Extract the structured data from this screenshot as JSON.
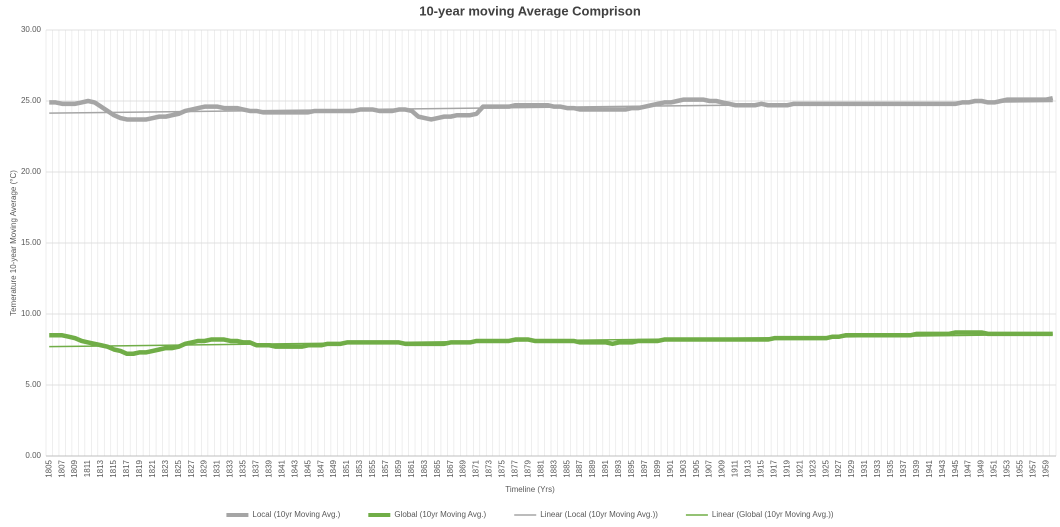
{
  "chart_data": {
    "type": "line",
    "title": "10-year moving Average Comprison",
    "x_label": "Timeline (Yrs)",
    "y_label": "Temerature 10-year Moving Average (°C)",
    "categories": [
      "1805",
      null,
      "1807",
      null,
      "1809",
      null,
      "1811",
      null,
      "1813",
      null,
      "1815",
      null,
      "1817",
      null,
      "1819",
      null,
      "1821",
      null,
      "1823",
      null,
      "1825",
      null,
      "1827",
      null,
      "1829",
      null,
      "1831",
      null,
      "1833",
      null,
      "1835",
      null,
      "1837",
      null,
      "1839",
      null,
      "1841",
      null,
      "1843",
      null,
      "1845",
      null,
      "1847",
      null,
      "1849",
      null,
      "1851",
      null,
      "1853",
      null,
      "1855",
      null,
      "1857",
      null,
      "1859",
      null,
      "1861",
      null,
      "1863",
      null,
      "1865",
      null,
      "1867",
      null,
      "1869",
      null,
      "1871",
      null,
      "1873",
      null,
      "1875",
      null,
      "1877",
      null,
      "1879",
      null,
      "1881",
      null,
      "1883",
      null,
      "1885",
      null,
      "1887",
      null,
      "1889",
      null,
      "1891",
      null,
      "1893",
      null,
      "1895",
      null,
      "1897",
      null,
      "1899",
      null,
      "1901",
      null,
      "1903",
      null,
      "1905",
      null,
      "1907",
      null,
      "1909",
      null,
      "1911",
      null,
      "1913",
      null,
      "1915",
      null,
      "1917",
      null,
      "1919",
      null,
      "1921",
      null,
      "1923",
      null,
      "1925",
      null,
      "1927",
      null,
      "1929",
      null,
      "1931",
      null,
      "1933",
      null,
      "1935",
      null,
      "1937",
      null,
      "1939",
      null,
      "1941",
      null,
      "1943",
      null,
      "1945",
      null,
      "1947",
      null,
      "1949",
      null,
      "1951",
      null,
      "1953",
      null,
      "1955",
      null,
      "1957",
      null,
      "1959",
      null
    ],
    "series": [
      {
        "name": "Local (10yr Moving Avg.)",
        "color": "#a5a5a5",
        "values": [
          24.9,
          24.9,
          24.8,
          24.8,
          24.8,
          24.9,
          25.0,
          24.9,
          24.6,
          24.3,
          24.0,
          23.8,
          23.7,
          23.7,
          23.7,
          23.7,
          23.8,
          23.9,
          23.9,
          24.0,
          24.1,
          24.3,
          24.4,
          24.5,
          24.6,
          24.6,
          24.6,
          24.5,
          24.5,
          24.5,
          24.4,
          24.3,
          24.3,
          24.2,
          24.2,
          24.2,
          24.2,
          24.2,
          24.2,
          24.2,
          24.2,
          24.3,
          24.3,
          24.3,
          24.3,
          24.3,
          24.3,
          24.3,
          24.4,
          24.4,
          24.4,
          24.3,
          24.3,
          24.3,
          24.4,
          24.4,
          24.3,
          23.9,
          23.8,
          23.7,
          23.8,
          23.9,
          23.9,
          24.0,
          24.0,
          24.0,
          24.1,
          24.6,
          24.6,
          24.6,
          24.6,
          24.6,
          24.7,
          24.7,
          24.7,
          24.7,
          24.7,
          24.7,
          24.6,
          24.6,
          24.5,
          24.5,
          24.4,
          24.4,
          24.4,
          24.4,
          24.4,
          24.4,
          24.4,
          24.4,
          24.5,
          24.5,
          24.6,
          24.7,
          24.8,
          24.9,
          24.9,
          25.0,
          25.1,
          25.1,
          25.1,
          25.1,
          25.0,
          25.0,
          24.9,
          24.8,
          24.7,
          24.7,
          24.7,
          24.7,
          24.8,
          24.7,
          24.7,
          24.7,
          24.7,
          24.8,
          24.8,
          24.8,
          24.8,
          24.8,
          24.8,
          24.8,
          24.8,
          24.8,
          24.8,
          24.8,
          24.8,
          24.8,
          24.8,
          24.8,
          24.8,
          24.8,
          24.8,
          24.8,
          24.8,
          24.8,
          24.8,
          24.8,
          24.8,
          24.8,
          24.8,
          24.9,
          24.9,
          25.0,
          25.0,
          24.9,
          24.9,
          25.0,
          25.1,
          25.1,
          25.1,
          25.1,
          25.1,
          25.1,
          25.1,
          25.2
        ]
      },
      {
        "name": "Global (10yr Moving Avg.)",
        "color": "#70ad47",
        "values": [
          8.5,
          8.5,
          8.5,
          8.4,
          8.3,
          8.1,
          8.0,
          7.9,
          7.8,
          7.7,
          7.5,
          7.4,
          7.2,
          7.2,
          7.3,
          7.3,
          7.4,
          7.5,
          7.6,
          7.6,
          7.7,
          7.9,
          8.0,
          8.1,
          8.1,
          8.2,
          8.2,
          8.2,
          8.1,
          8.1,
          8.0,
          8.0,
          7.8,
          7.8,
          7.8,
          7.7,
          7.7,
          7.7,
          7.7,
          7.7,
          7.8,
          7.8,
          7.8,
          7.9,
          7.9,
          7.9,
          8.0,
          8.0,
          8.0,
          8.0,
          8.0,
          8.0,
          8.0,
          8.0,
          8.0,
          7.9,
          7.9,
          7.9,
          7.9,
          7.9,
          7.9,
          7.9,
          8.0,
          8.0,
          8.0,
          8.0,
          8.1,
          8.1,
          8.1,
          8.1,
          8.1,
          8.1,
          8.2,
          8.2,
          8.2,
          8.1,
          8.1,
          8.1,
          8.1,
          8.1,
          8.1,
          8.1,
          8.0,
          8.0,
          8.0,
          8.0,
          8.0,
          7.9,
          8.0,
          8.0,
          8.0,
          8.1,
          8.1,
          8.1,
          8.1,
          8.2,
          8.2,
          8.2,
          8.2,
          8.2,
          8.2,
          8.2,
          8.2,
          8.2,
          8.2,
          8.2,
          8.2,
          8.2,
          8.2,
          8.2,
          8.2,
          8.2,
          8.3,
          8.3,
          8.3,
          8.3,
          8.3,
          8.3,
          8.3,
          8.3,
          8.3,
          8.4,
          8.4,
          8.5,
          8.5,
          8.5,
          8.5,
          8.5,
          8.5,
          8.5,
          8.5,
          8.5,
          8.5,
          8.5,
          8.6,
          8.6,
          8.6,
          8.6,
          8.6,
          8.6,
          8.7,
          8.7,
          8.7,
          8.7,
          8.7,
          8.6,
          8.6,
          8.6,
          8.6,
          8.6,
          8.6,
          8.6,
          8.6,
          8.6,
          8.6,
          8.6
        ]
      }
    ],
    "trendlines": [
      {
        "name": "Linear (Local (10yr Moving Avg.))",
        "color": "#a5a5a5",
        "series": 0
      },
      {
        "name": "Linear (Global (10yr Moving Avg.))",
        "color": "#70ad47",
        "series": 1
      }
    ],
    "ylim": [
      0,
      30
    ],
    "yticks": [
      {
        "value": 0,
        "label": "0.00"
      },
      {
        "value": 5,
        "label": "5.00"
      },
      {
        "value": 10,
        "label": "10.00"
      },
      {
        "value": 15,
        "label": "15.00"
      },
      {
        "value": 20,
        "label": "20.00"
      },
      {
        "value": 25,
        "label": "25.00"
      },
      {
        "value": 30,
        "label": "30.00"
      }
    ],
    "grid": true,
    "legend": "bottom"
  }
}
